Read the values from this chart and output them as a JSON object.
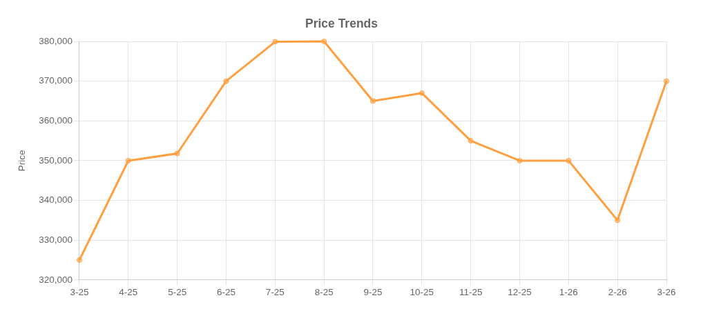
{
  "chart_data": {
    "type": "line",
    "title": "Price Trends",
    "ylabel": "Price",
    "categories": [
      "3-25",
      "4-25",
      "5-25",
      "6-25",
      "7-25",
      "8-25",
      "9-25",
      "10-25",
      "11-25",
      "12-25",
      "1-26",
      "2-26",
      "3-26"
    ],
    "series": [
      {
        "color": "#ff9f40",
        "values": [
          325000,
          350000,
          351800,
          370000,
          379900,
          380000,
          365000,
          367000,
          355000,
          350000,
          350000,
          335000,
          370000
        ]
      }
    ],
    "ylim": [
      320000,
      380000
    ],
    "yticks": [
      {
        "value": 320000,
        "label": "320,000"
      },
      {
        "value": 330000,
        "label": "330,000"
      },
      {
        "value": 340000,
        "label": "340,000"
      },
      {
        "value": 350000,
        "label": "350,000"
      },
      {
        "value": 360000,
        "label": "360,000"
      },
      {
        "value": 370000,
        "label": "370,000"
      },
      {
        "value": 380000,
        "label": "380,000"
      }
    ],
    "grid": true,
    "marker": "circle",
    "line_style": "solid"
  }
}
